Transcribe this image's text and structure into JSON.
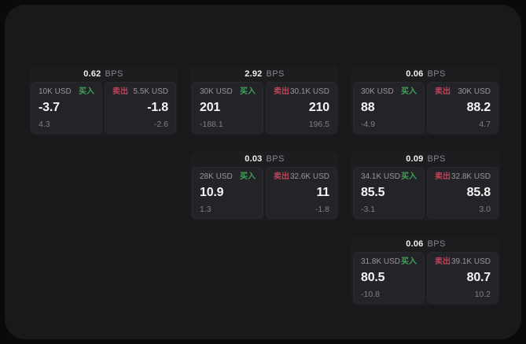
{
  "labels": {
    "bps_unit": "BPS",
    "buy": "买入",
    "sell": "卖出"
  },
  "colors": {
    "background": "#0a0a0b",
    "panel": "#19191b",
    "card": "#1d1d20",
    "tile": "#242428",
    "buy_green": "#3ea35a",
    "sell_red": "#bc4458"
  },
  "cards": [
    {
      "bps": "0.62",
      "buy_amount": "10K USD",
      "sell_amount": "5.5K USD",
      "buy_price": "-3.7",
      "buy_change": "4.3",
      "sell_price": "-1.8",
      "sell_change": "-2.6"
    },
    {
      "bps": "2.92",
      "buy_amount": "30K USD",
      "sell_amount": "30.1K USD",
      "buy_price": "201",
      "buy_change": "-188.1",
      "sell_price": "210",
      "sell_change": "196.5"
    },
    {
      "bps": "0.06",
      "buy_amount": "30K USD",
      "sell_amount": "30K USD",
      "buy_price": "88",
      "buy_change": "-4.9",
      "sell_price": "88.2",
      "sell_change": "4.7"
    },
    {
      "bps": "0.03",
      "buy_amount": "28K USD",
      "sell_amount": "32.6K USD",
      "buy_price": "10.9",
      "buy_change": "1.3",
      "sell_price": "11",
      "sell_change": "-1.8"
    },
    {
      "bps": "0.09",
      "buy_amount": "34.1K USD",
      "sell_amount": "32.8K USD",
      "buy_price": "85.5",
      "buy_change": "-3.1",
      "sell_price": "85.8",
      "sell_change": "3.0"
    },
    {
      "bps": "0.06",
      "buy_amount": "31.8K USD",
      "sell_amount": "39.1K USD",
      "buy_price": "80.5",
      "buy_change": "-10.8",
      "sell_price": "80.7",
      "sell_change": "10.2"
    }
  ]
}
